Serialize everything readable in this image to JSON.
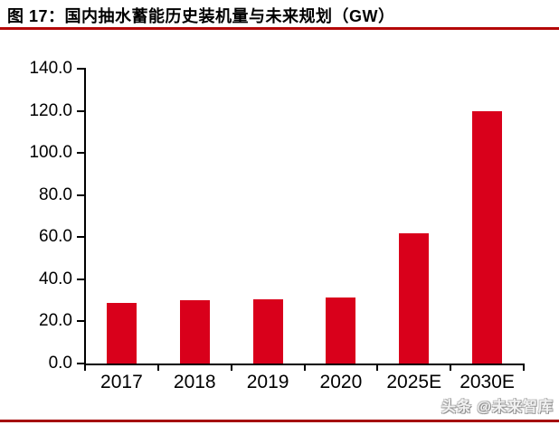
{
  "page": {
    "title": "图 17：国内抽水蓄能历史装机量与未来规划（GW）",
    "watermark": "头条 @未来智库"
  },
  "colors": {
    "bar": "#d9001b",
    "title_rule": "#b40808",
    "bottom_rule": "#a50a0a",
    "axis": "#000000"
  },
  "chart_data": {
    "type": "bar",
    "title": "图 17：国内抽水蓄能历史装机量与未来规划（GW）",
    "categories": [
      "2017",
      "2018",
      "2019",
      "2020",
      "2025E",
      "2030E"
    ],
    "values": [
      28.7,
      30.0,
      30.3,
      31.5,
      62.0,
      120.0
    ],
    "xlabel": "",
    "ylabel": "",
    "ylim": [
      0,
      140
    ],
    "ytick_step": 20,
    "ytick_labels": [
      "0.0",
      "20.0",
      "40.0",
      "60.0",
      "80.0",
      "100.0",
      "120.0",
      "140.0"
    ],
    "grid": false,
    "legend": null,
    "bar_color": "#d9001b"
  }
}
